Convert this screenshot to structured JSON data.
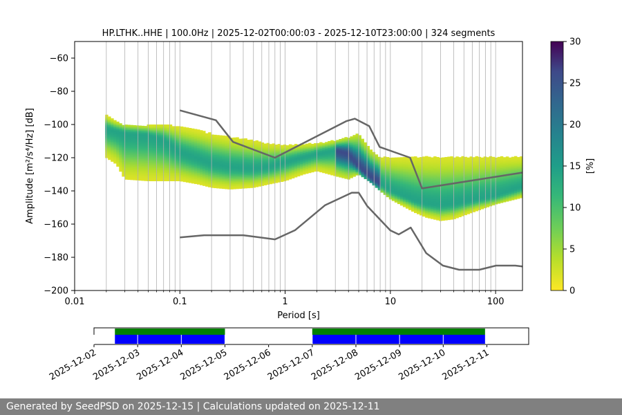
{
  "chart_data": {
    "type": "heatmap",
    "title": "HP.LTHK..HHE | 100.0Hz | 2025-12-02T00:00:03 - 2025-12-10T23:00:00 | 324 segments",
    "xlabel": "Period [s]",
    "ylabel": "Amplitude [m²/s⁴/Hz] [dB]",
    "x_scale": "log",
    "xlim": [
      0.01,
      180
    ],
    "ylim": [
      -200,
      -50
    ],
    "x_ticks": [
      0.01,
      0.1,
      1,
      10,
      100
    ],
    "x_tick_labels": [
      "0.01",
      "0.1",
      "1",
      "10",
      "100"
    ],
    "y_ticks": [
      -200,
      -180,
      -160,
      -140,
      -120,
      -100,
      -80,
      -60
    ],
    "y_tick_labels": [
      "−200",
      "−180",
      "−160",
      "−140",
      "−120",
      "−100",
      "−80",
      "−60"
    ],
    "grid": "vertical",
    "colormap": "viridis_r",
    "colorbar": {
      "label": "[%]",
      "range": [
        0,
        30
      ],
      "ticks": [
        0,
        5,
        10,
        15,
        20,
        25,
        30
      ],
      "tick_labels": [
        "0",
        "5",
        "10",
        "15",
        "20",
        "25",
        "30"
      ]
    },
    "noise_models": [
      {
        "name": "NHNM",
        "period": [
          0.1,
          0.22,
          0.32,
          0.8,
          3.8,
          4.6,
          6.3,
          7.9,
          15.4,
          20,
          354.8
        ],
        "db": [
          -91.5,
          -97.4,
          -110.5,
          -120,
          -98,
          -96.5,
          -101,
          -113.5,
          -120,
          -138.5,
          -126
        ]
      },
      {
        "name": "NLNM",
        "period": [
          0.1,
          0.17,
          0.4,
          0.8,
          1.24,
          2.4,
          4.3,
          5,
          6,
          10,
          12,
          15.6,
          21.9,
          31.6,
          45,
          70,
          101,
          154,
          180
        ],
        "db": [
          -168,
          -166.7,
          -166.7,
          -169.2,
          -163.7,
          -148.6,
          -141.1,
          -141.1,
          -149,
          -163.8,
          -166.2,
          -162.1,
          -177.5,
          -185,
          -187.5,
          -187.5,
          -185,
          -185,
          -185.5
        ]
      }
    ],
    "psd_density": {
      "mode": {
        "period": [
          0.02,
          0.03,
          0.05,
          0.07,
          0.1,
          0.15,
          0.2,
          0.3,
          0.5,
          0.7,
          1,
          1.5,
          2,
          3,
          4,
          4.7,
          5.5,
          6.5,
          8,
          10,
          13,
          17,
          22,
          30,
          40,
          60,
          100,
          180
        ],
        "db": [
          -103,
          -106,
          -107,
          -110,
          -117,
          -121,
          -124,
          -126,
          -127,
          -126,
          -123,
          -120,
          -118,
          -116,
          -118,
          -124,
          -128,
          -132,
          -136,
          -140,
          -143,
          -146,
          -148,
          -149,
          -148,
          -146,
          -143,
          -138
        ]
      },
      "upper": {
        "period": [
          0.02,
          0.03,
          0.05,
          0.07,
          0.1,
          0.15,
          0.2,
          0.3,
          0.5,
          0.7,
          1,
          1.5,
          2,
          3,
          4,
          5,
          6.5,
          8,
          10,
          13,
          17,
          22,
          30,
          40,
          60,
          100,
          180
        ],
        "db": [
          -95,
          -101,
          -101,
          -100,
          -102,
          -104,
          -106,
          -108,
          -110,
          -112,
          -113,
          -112,
          -112,
          -110,
          -108,
          -106,
          -116,
          -120,
          -120,
          -120,
          -120,
          -120,
          -120,
          -120,
          -120,
          -120,
          -120
        ]
      },
      "lower": {
        "period": [
          0.02,
          0.025,
          0.03,
          0.05,
          0.07,
          0.1,
          0.15,
          0.2,
          0.3,
          0.5,
          0.7,
          1,
          1.5,
          2,
          3,
          4,
          5,
          6.5,
          8,
          10,
          13,
          17,
          22,
          30,
          40,
          60,
          100,
          180
        ],
        "db": [
          -120,
          -124,
          -133,
          -134,
          -134,
          -134,
          -136,
          -138,
          -139,
          -138,
          -136,
          -134,
          -130,
          -128,
          -131,
          -133,
          -130,
          -135,
          -140,
          -145,
          -149,
          -153,
          -156,
          -158,
          -157,
          -153,
          -148,
          -144
        ]
      },
      "sparse_hump": {
        "period": [
          8,
          10,
          13,
          17,
          22,
          27,
          33,
          45,
          60,
          80,
          100,
          130,
          180
        ],
        "db": [
          -107,
          -102,
          -97,
          -92,
          -88,
          -88,
          -92,
          -100,
          -106,
          -110,
          -113,
          -114,
          -114
        ]
      }
    }
  },
  "timeline": {
    "type": "data_availability",
    "dates": [
      "2025-12-02",
      "2025-12-03",
      "2025-12-04",
      "2025-12-05",
      "2025-12-06",
      "2025-12-07",
      "2025-12-08",
      "2025-12-09",
      "2025-12-10",
      "2025-12-11"
    ],
    "range": [
      "2025-12-02T00:00",
      "2025-12-11T23:00"
    ],
    "colors": {
      "green": "#008000",
      "blue": "#0000ff"
    },
    "green_spans": [
      [
        "2025-12-02T11:30",
        "2025-12-05T00:00"
      ],
      [
        "2025-12-07T00:00",
        "2025-12-10T23:00"
      ]
    ],
    "blue_spans": [
      [
        "2025-12-02T11:30",
        "2025-12-03T00:00"
      ],
      [
        "2025-12-03T00:00",
        "2025-12-04T00:00"
      ],
      [
        "2025-12-04T00:00",
        "2025-12-05T00:00"
      ],
      [
        "2025-12-07T00:00",
        "2025-12-08T00:00"
      ],
      [
        "2025-12-08T00:00",
        "2025-12-09T00:00"
      ],
      [
        "2025-12-09T00:00",
        "2025-12-10T23:00"
      ]
    ]
  },
  "footer": {
    "text": "Generated by SeedPSD on 2025-12-15 | Calculations updated on 2025-12-11"
  }
}
